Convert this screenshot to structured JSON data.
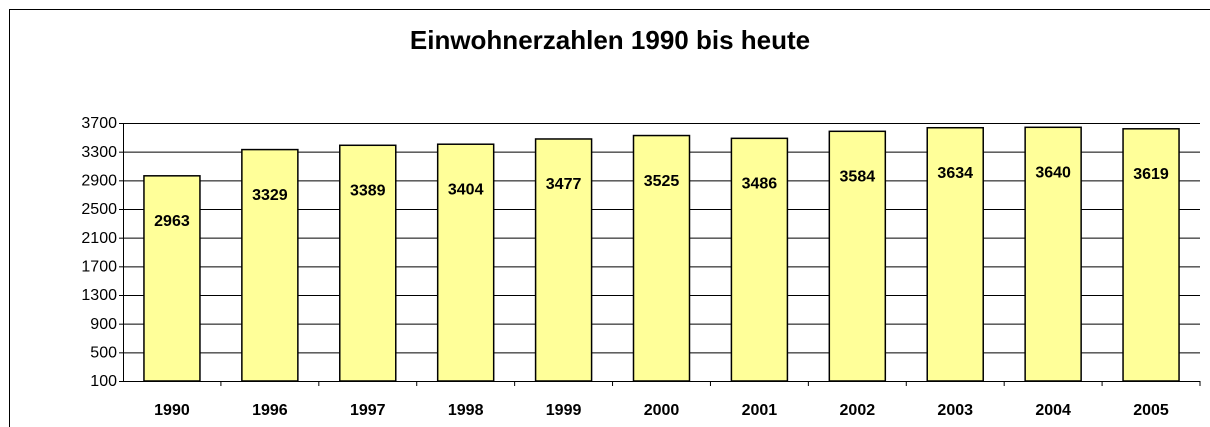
{
  "chart_data": {
    "type": "bar",
    "title": "Einwohnerzahlen 1990 bis heute",
    "categories": [
      "1990",
      "1996",
      "1997",
      "1998",
      "1999",
      "2000",
      "2001",
      "2002",
      "2003",
      "2004",
      "2005"
    ],
    "values": [
      2963,
      3329,
      3389,
      3404,
      3477,
      3525,
      3486,
      3584,
      3634,
      3640,
      3619
    ],
    "color": "#ffff99",
    "ylim": [
      100,
      3700
    ],
    "yticks": [
      100,
      500,
      900,
      1300,
      1700,
      2100,
      2500,
      2900,
      3300,
      3700
    ],
    "grid": true
  }
}
